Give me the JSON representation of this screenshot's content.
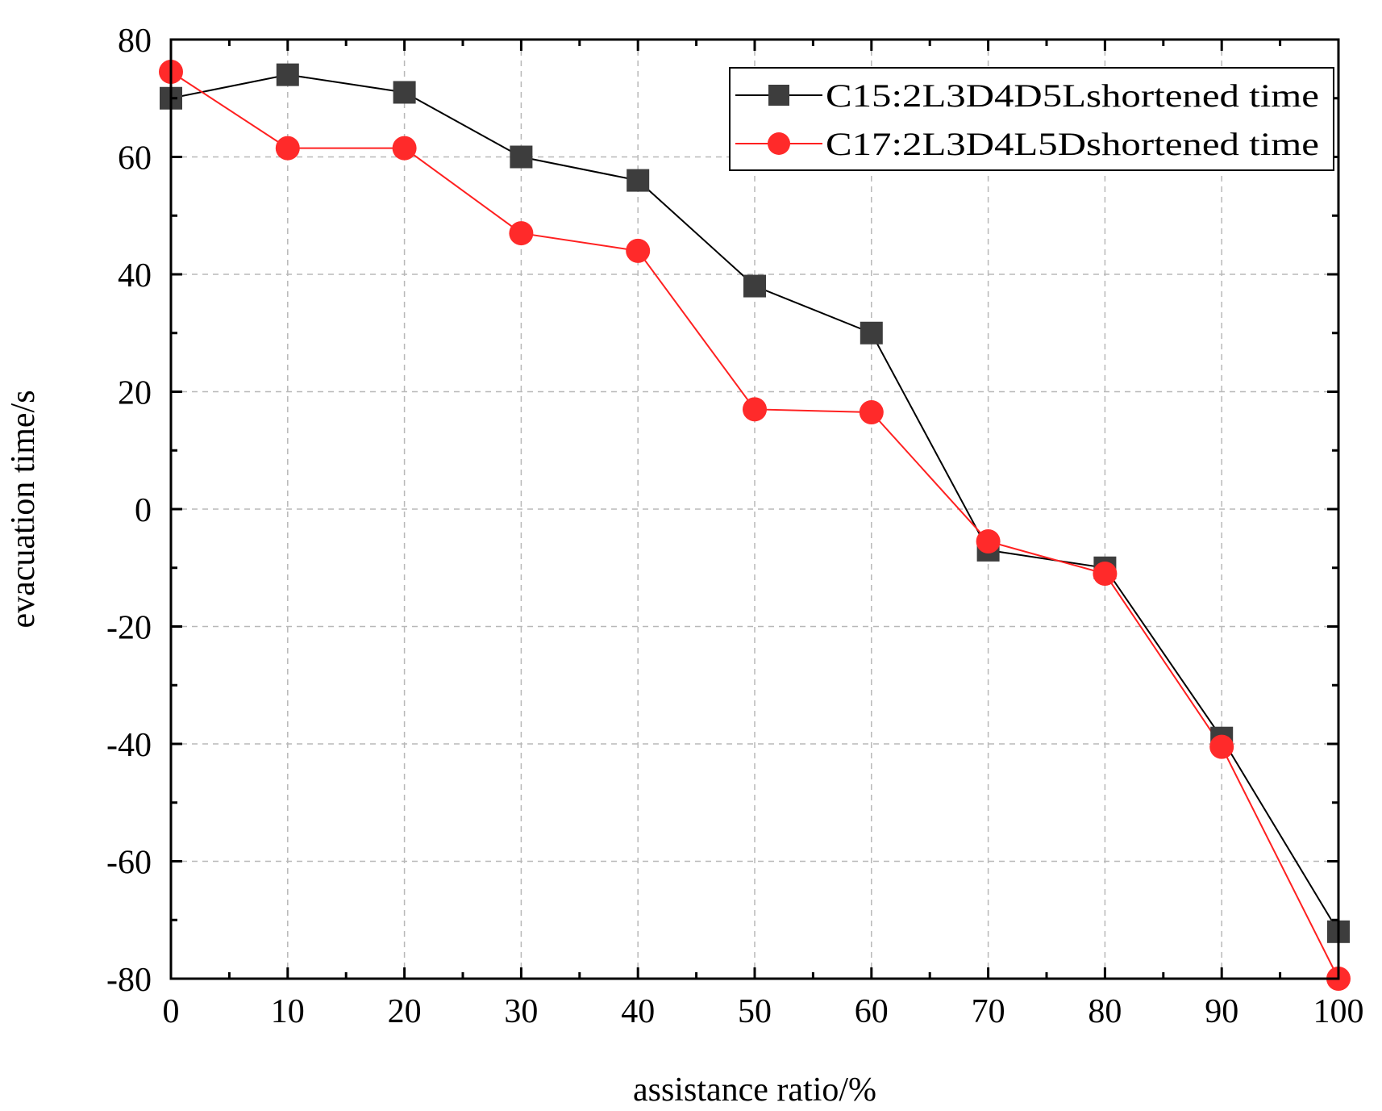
{
  "chart_data": {
    "type": "line",
    "title": "",
    "xlabel": "assistance ratio/%",
    "ylabel": "evacuation time/s",
    "xlim": [
      0,
      100
    ],
    "ylim": [
      -80,
      80
    ],
    "x_ticks": [
      0,
      10,
      20,
      30,
      40,
      50,
      60,
      70,
      80,
      90,
      100
    ],
    "y_ticks": [
      80,
      60,
      40,
      20,
      0,
      -20,
      -40,
      -60,
      -80
    ],
    "grid": true,
    "legend_position": "top-right",
    "x": [
      0,
      10,
      20,
      30,
      40,
      50,
      60,
      70,
      80,
      90,
      100
    ],
    "series": [
      {
        "name": "C15:2L3D4D5Lshortened time",
        "marker": "square",
        "color": "#000000",
        "marker_color": "#3d3d3d",
        "values": [
          70,
          74,
          71,
          60,
          56,
          38,
          30,
          -7,
          -10,
          -39,
          -72
        ]
      },
      {
        "name": "C17:2L3D4L5Dshortened time",
        "marker": "circle",
        "color": "#ff2020",
        "marker_color": "#ff2a2a",
        "values": [
          74.5,
          61.5,
          61.5,
          47,
          44,
          17,
          16.5,
          -5.5,
          -11,
          -40.5,
          -80
        ]
      }
    ]
  }
}
